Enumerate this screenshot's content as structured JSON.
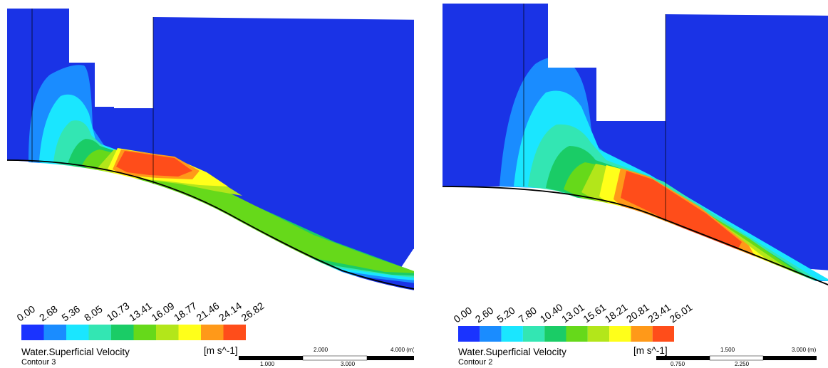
{
  "panels": [
    {
      "variable_label": "Water.Superficial Velocity",
      "contour_name": "Contour 3",
      "unit_label": "[m s^-1]",
      "legend_ticks": [
        "0.00",
        "2.68",
        "5.36",
        "8.05",
        "10.73",
        "13.41",
        "16.09",
        "18.77",
        "21.46",
        "24.14",
        "26.82"
      ],
      "scale_top_labels": [
        "2.000",
        "4.000 (m)"
      ],
      "scale_bottom_labels": [
        "1.000",
        "3.000"
      ]
    },
    {
      "variable_label": "Water.Superficial Velocity",
      "contour_name": "Contour 2",
      "unit_label": "[m s^-1]",
      "legend_ticks": [
        "0.00",
        "2.60",
        "5.20",
        "7.80",
        "10.40",
        "13.01",
        "15.61",
        "18.21",
        "20.81",
        "23.41",
        "26.01"
      ],
      "scale_top_labels": [
        "1.500",
        "3.000 (m)"
      ],
      "scale_bottom_labels": [
        "0.750",
        "2.250"
      ]
    }
  ],
  "colormap": [
    "#1a33ff",
    "#1a8cff",
    "#1ae6ff",
    "#33e6b3",
    "#1acc66",
    "#66d91a",
    "#b3e61a",
    "#ffff1a",
    "#ff9919",
    "#ff4d1a"
  ],
  "background_color": "#1a33e6"
}
